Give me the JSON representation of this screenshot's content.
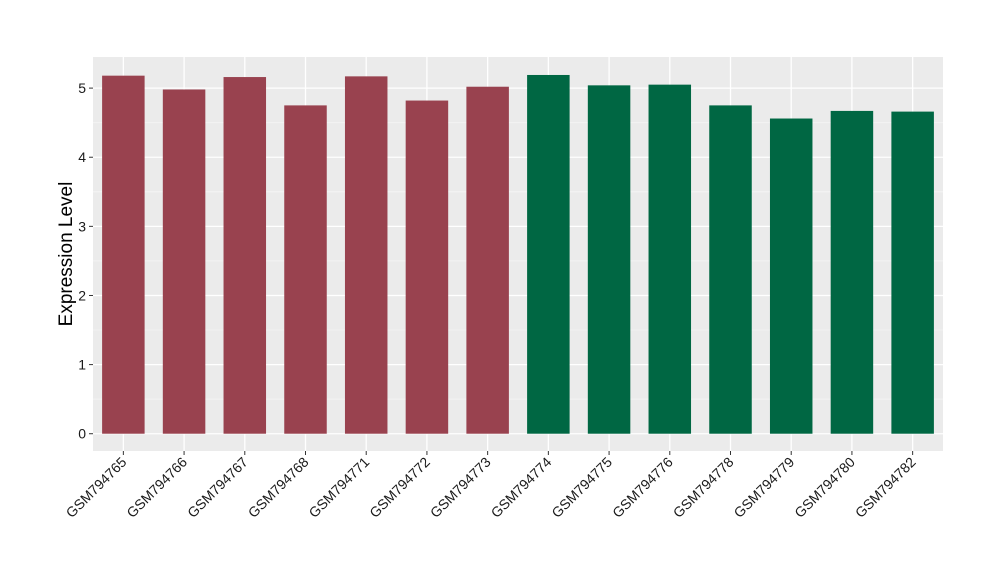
{
  "chart_data": {
    "type": "bar",
    "title": "",
    "xlabel": "",
    "ylabel": "Expression Level",
    "ylim": [
      -0.25,
      5.45
    ],
    "yticks": [
      0,
      1,
      2,
      3,
      4,
      5
    ],
    "grid": true,
    "panel_background": "#EBEBEB",
    "categories": [
      "GSM794765",
      "GSM794766",
      "GSM794767",
      "GSM794768",
      "GSM794771",
      "GSM794772",
      "GSM794773",
      "GSM794774",
      "GSM794775",
      "GSM794776",
      "GSM794778",
      "GSM794779",
      "GSM794780",
      "GSM794782"
    ],
    "values": [
      5.18,
      4.98,
      5.16,
      4.75,
      5.17,
      4.82,
      5.02,
      5.19,
      5.04,
      5.05,
      4.75,
      4.56,
      4.67,
      4.66
    ],
    "bar_colors": [
      "#99424F",
      "#99424F",
      "#99424F",
      "#99424F",
      "#99424F",
      "#99424F",
      "#99424F",
      "#006743",
      "#006743",
      "#006743",
      "#006743",
      "#006743",
      "#006743",
      "#006743"
    ]
  }
}
